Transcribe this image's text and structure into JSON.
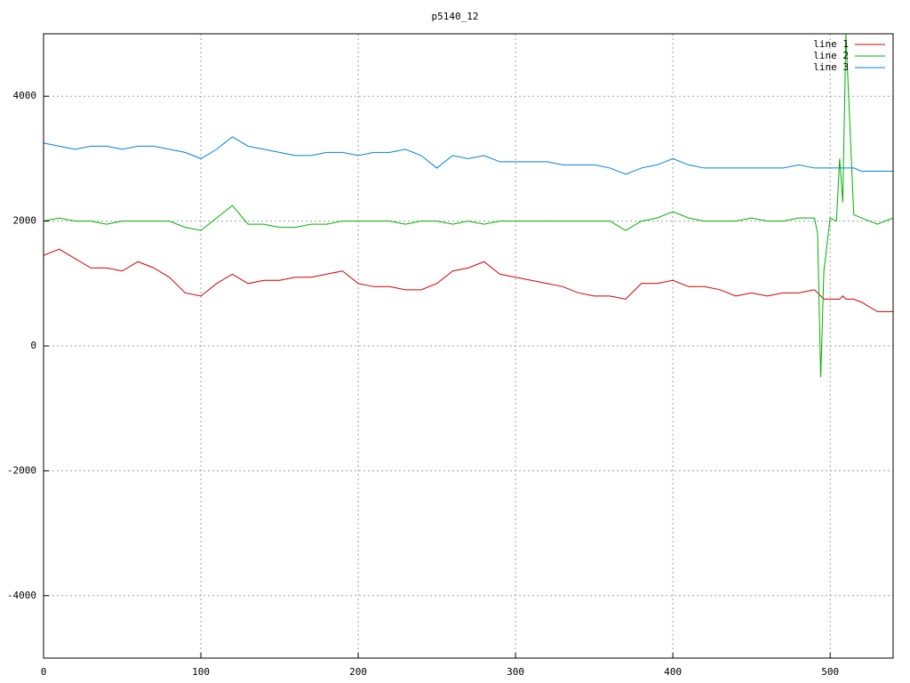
{
  "chart_data": {
    "type": "line",
    "title": "p5140_12",
    "x": [
      0,
      10,
      20,
      30,
      40,
      50,
      60,
      70,
      80,
      90,
      100,
      110,
      120,
      130,
      140,
      150,
      160,
      170,
      180,
      190,
      200,
      210,
      220,
      230,
      240,
      250,
      260,
      270,
      280,
      290,
      300,
      310,
      320,
      330,
      340,
      350,
      360,
      370,
      380,
      390,
      400,
      410,
      420,
      430,
      440,
      450,
      460,
      470,
      480,
      490,
      492,
      494,
      496,
      500,
      504,
      506,
      508,
      510,
      515,
      520,
      530,
      540
    ],
    "series": [
      {
        "name": "line 1",
        "color": "#d00000",
        "values": [
          1450,
          1550,
          1400,
          1250,
          1250,
          1200,
          1350,
          1250,
          1100,
          850,
          800,
          1000,
          1150,
          1000,
          1050,
          1050,
          1100,
          1100,
          1150,
          1200,
          1000,
          950,
          950,
          900,
          900,
          1000,
          1200,
          1250,
          1350,
          1150,
          1100,
          1050,
          1000,
          950,
          850,
          800,
          800,
          750,
          1000,
          1000,
          1050,
          950,
          950,
          900,
          800,
          850,
          800,
          850,
          850,
          900,
          850,
          800,
          750,
          750,
          750,
          750,
          800,
          750,
          750,
          700,
          550,
          550
        ]
      },
      {
        "name": "line 2",
        "color": "#00b000",
        "values": [
          2000,
          2050,
          2000,
          2000,
          1950,
          2000,
          2000,
          2000,
          2000,
          1900,
          1850,
          2050,
          2250,
          1950,
          1950,
          1900,
          1900,
          1950,
          1950,
          2000,
          2000,
          2000,
          2000,
          1950,
          2000,
          2000,
          1950,
          2000,
          1950,
          2000,
          2000,
          2000,
          2000,
          2000,
          2000,
          2000,
          2000,
          1850,
          2000,
          2050,
          2150,
          2050,
          2000,
          2000,
          2000,
          2050,
          2000,
          2000,
          2050,
          2050,
          1800,
          -500,
          1200,
          2050,
          2000,
          3000,
          2300,
          5000,
          2100,
          2050,
          1950,
          2050
        ]
      },
      {
        "name": "line 3",
        "color": "#0080e0",
        "values": [
          3250,
          3200,
          3150,
          3200,
          3200,
          3150,
          3200,
          3200,
          3150,
          3100,
          3000,
          3150,
          3350,
          3200,
          3150,
          3100,
          3050,
          3050,
          3100,
          3100,
          3050,
          3100,
          3100,
          3150,
          3050,
          2850,
          3050,
          3000,
          3050,
          2950,
          2950,
          2950,
          2950,
          2900,
          2900,
          2900,
          2850,
          2750,
          2850,
          2900,
          3000,
          2900,
          2850,
          2850,
          2850,
          2850,
          2850,
          2850,
          2900,
          2850,
          2850,
          2850,
          2850,
          2850,
          2850,
          2850,
          2850,
          2850,
          2850,
          2800,
          2800,
          2800
        ]
      }
    ],
    "xlim": [
      0,
      540
    ],
    "xticks": [
      0,
      100,
      200,
      300,
      400,
      500
    ],
    "ylim": [
      -5000,
      5000
    ],
    "yticks": [
      -4000,
      -2000,
      0,
      2000,
      4000
    ],
    "grid": true,
    "legend": "top-right"
  }
}
